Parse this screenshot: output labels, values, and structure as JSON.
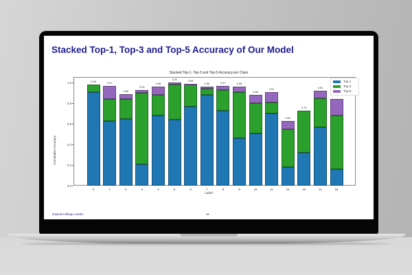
{
  "slide": {
    "title": "Stacked Top-1, Top-3 and Top-5 Accuracy of Our Model",
    "footer_left": "Imperial College London",
    "page_number": "16"
  },
  "colors": {
    "top1": "#1f77b4",
    "top3": "#2ca02c",
    "top5": "#9467bd",
    "title": "#1c1c8f"
  },
  "chart_data": {
    "type": "bar",
    "stacked": true,
    "title": "Stacked Top-1, Top-3 and Top-5 Accuracy per Class",
    "xlabel": "Label",
    "ylabel": "Cumulative Accuracy",
    "ylim": [
      0,
      1.05
    ],
    "yticks": [
      "0.0",
      "0.2",
      "0.4",
      "0.6",
      "0.8",
      "1.0"
    ],
    "categories": [
      "0",
      "1",
      "2",
      "3",
      "4",
      "5",
      "6",
      "7",
      "8",
      "9",
      "10",
      "11",
      "12",
      "13",
      "14",
      "15"
    ],
    "legend": [
      "Top-1",
      "Top-3",
      "Top-5"
    ],
    "legend_position": "upper right",
    "grid": false,
    "cumulative": {
      "top1": [
        0.91,
        0.63,
        0.65,
        0.21,
        0.68,
        0.64,
        0.77,
        0.88,
        0.73,
        0.46,
        0.51,
        0.7,
        0.18,
        0.32,
        0.57,
        0.16
      ],
      "top3": [
        0.98,
        0.84,
        0.84,
        0.9,
        0.88,
        0.98,
        0.98,
        0.94,
        0.93,
        0.91,
        0.8,
        0.81,
        0.55,
        0.73,
        0.85,
        0.68
      ],
      "top5": [
        0.98,
        0.97,
        0.89,
        0.93,
        0.96,
        1.0,
        0.99,
        0.96,
        0.97,
        0.96,
        0.88,
        0.91,
        0.63,
        0.73,
        0.92,
        0.84
      ]
    },
    "value_labels": [
      "0.98",
      "0.97",
      "0.89",
      "0.93",
      "0.96",
      "1.00",
      "0.99",
      "0.96",
      "0.97",
      "0.96",
      "0.88",
      "0.91",
      "0.63",
      "0.73",
      "0.92",
      ""
    ]
  }
}
